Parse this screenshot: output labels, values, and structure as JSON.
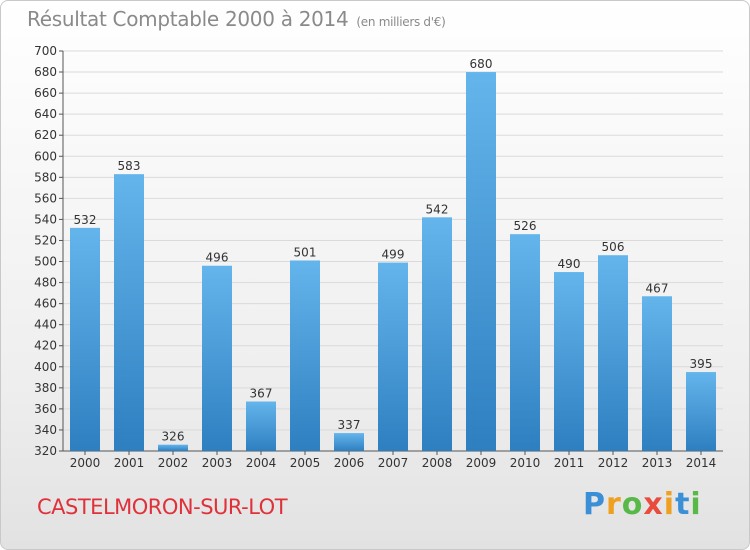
{
  "title": "Résultat Comptable 2000 à 2014",
  "subtitle": "(en milliers d'€)",
  "commune": "CASTELMORON-SUR-LOT",
  "logo": {
    "letters": [
      "P",
      "r",
      "o",
      "x",
      "i",
      "t",
      "i"
    ],
    "colors": [
      "#3a8fd6",
      "#f0a020",
      "#58b948",
      "#e84c3d",
      "#f0a020",
      "#3a8fd6",
      "#58b948"
    ]
  },
  "colors": {
    "bar_top": "#64b5ec",
    "bar_bottom": "#2e7fc0",
    "title": "#8a8a8a",
    "commune": "#e0313a"
  },
  "chart_data": {
    "type": "bar",
    "categories": [
      "2000",
      "2001",
      "2002",
      "2003",
      "2004",
      "2005",
      "2006",
      "2007",
      "2008",
      "2009",
      "2010",
      "2011",
      "2012",
      "2013",
      "2014"
    ],
    "values": [
      532,
      583,
      326,
      496,
      367,
      501,
      337,
      499,
      542,
      680,
      526,
      490,
      506,
      467,
      395
    ],
    "ylim": [
      320,
      700
    ],
    "yticks": [
      320,
      340,
      360,
      380,
      400,
      420,
      440,
      460,
      480,
      500,
      520,
      540,
      560,
      580,
      600,
      620,
      640,
      660,
      680,
      700
    ],
    "grid": true
  }
}
